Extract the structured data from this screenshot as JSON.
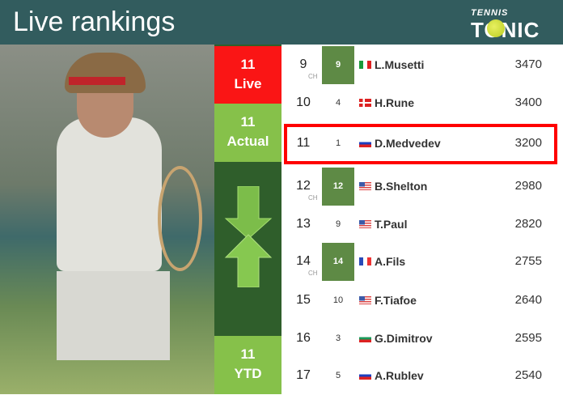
{
  "header": {
    "title": "Live rankings",
    "logo_text_top": "TENNIS",
    "logo_text_main": "TONIC"
  },
  "status": {
    "live_rank": "11",
    "live_label": "Live",
    "actual_rank": "11",
    "actual_label": "Actual",
    "ytd_rank": "11",
    "ytd_label": "YTD",
    "trend_icon": "up-down-arrow-icon"
  },
  "colors": {
    "live": "#fa1515",
    "actual": "#86c14a",
    "highlight": "#ff0000",
    "header": "#325c5e"
  },
  "rows": [
    {
      "rank": "9",
      "ch": "CH",
      "prev": "9",
      "prev_best": true,
      "flag": "italy",
      "name": "L.Musetti",
      "points": "3470"
    },
    {
      "rank": "10",
      "ch": "",
      "prev": "4",
      "prev_best": false,
      "flag": "denmark",
      "name": "H.Rune",
      "points": "3400"
    },
    {
      "rank": "11",
      "ch": "",
      "prev": "1",
      "prev_best": false,
      "flag": "russia",
      "name": "D.Medvedev",
      "points": "3200",
      "highlighted": true
    },
    {
      "rank": "12",
      "ch": "CH",
      "prev": "12",
      "prev_best": true,
      "flag": "usa",
      "name": "B.Shelton",
      "points": "2980"
    },
    {
      "rank": "13",
      "ch": "",
      "prev": "9",
      "prev_best": false,
      "flag": "usa",
      "name": "T.Paul",
      "points": "2820"
    },
    {
      "rank": "14",
      "ch": "CH",
      "prev": "14",
      "prev_best": true,
      "flag": "france",
      "name": "A.Fils",
      "points": "2755"
    },
    {
      "rank": "15",
      "ch": "",
      "prev": "10",
      "prev_best": false,
      "flag": "usa",
      "name": "F.Tiafoe",
      "points": "2640"
    },
    {
      "rank": "16",
      "ch": "",
      "prev": "3",
      "prev_best": false,
      "flag": "bulgaria",
      "name": "G.Dimitrov",
      "points": "2595"
    },
    {
      "rank": "17",
      "ch": "",
      "prev": "5",
      "prev_best": false,
      "flag": "neutral",
      "name": "A.Rublev",
      "points": "2540"
    }
  ]
}
